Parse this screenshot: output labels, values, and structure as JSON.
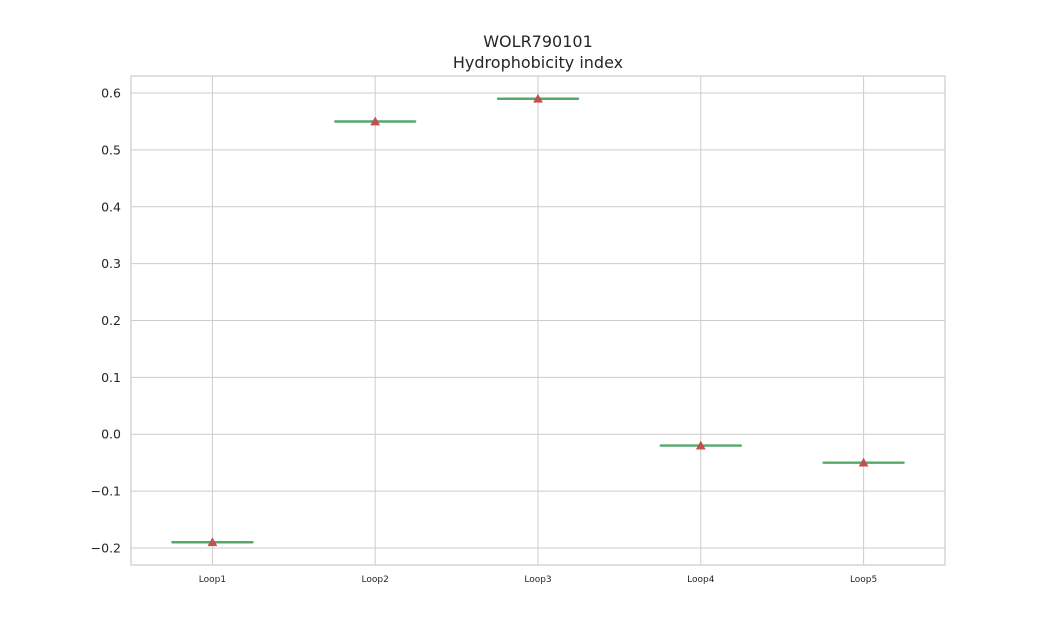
{
  "chart_data": {
    "type": "box",
    "title_lines": [
      "WOLR790101",
      "Hydrophobicity index"
    ],
    "xlabel": "",
    "ylabel": "",
    "categories": [
      "Loop1",
      "Loop2",
      "Loop3",
      "Loop4",
      "Loop5"
    ],
    "values": [
      -0.19,
      0.55,
      0.59,
      -0.02,
      -0.05
    ],
    "ylim": [
      -0.23,
      0.63
    ],
    "yticks": [
      -0.2,
      -0.1,
      0.0,
      0.1,
      0.2,
      0.3,
      0.4,
      0.5,
      0.6
    ],
    "ytick_labels": [
      "−0.2",
      "−0.1",
      "0.0",
      "0.1",
      "0.2",
      "0.3",
      "0.4",
      "0.5",
      "0.6"
    ],
    "grid": true,
    "mean_marker": "triangle",
    "colors": {
      "median_line": "#55a868",
      "mean_marker": "#c44e52",
      "box_line": "#262626",
      "grid": "#cccccc",
      "spine": "#cccccc"
    }
  }
}
